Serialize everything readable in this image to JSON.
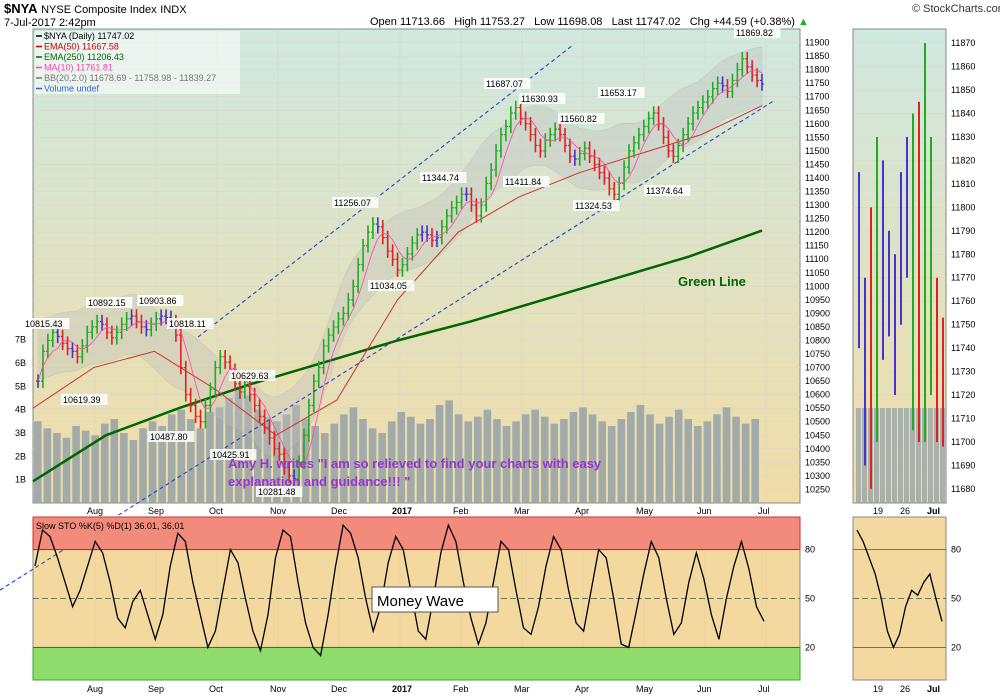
{
  "header": {
    "symbol": "$NYA",
    "name": "NYSE Composite Index",
    "exchange": "INDX",
    "date": "7-Jul-2017 2:42pm",
    "open": "Open 11713.66",
    "high": "High 11753.27",
    "low": "Low 11698.08",
    "last": "Last 11747.02",
    "chg": "Chg +44.59 (+0.38%)",
    "up_icon": "up-triangle-icon",
    "logo": "© StockCharts.com"
  },
  "legend": [
    {
      "text": "$NYA (Daily) 11747.02",
      "color": "#000000"
    },
    {
      "text": "EMA(50) 11667.58",
      "color": "#cc0000"
    },
    {
      "text": "EMA(250) 11206.43",
      "color": "#006600"
    },
    {
      "text": "MA(10) 11761.81",
      "color": "#ff44aa"
    },
    {
      "text": "BB(20,2.0) 11678.69 - 11758.98 - 11839.27",
      "color": "#777777"
    },
    {
      "text": "Volume undef",
      "color": "#3366cc"
    }
  ],
  "annotations": {
    "testimonial_line1": "Amy H. writes \"I am so relieved to find your charts with easy",
    "testimonial_line2": "explanation and guidance!!! \"",
    "green_line": "Green Line",
    "money_wave": "Money Wave"
  },
  "colors": {
    "up_bar": "#22aa22",
    "down_bar": "#dd2222",
    "neutral_bar": "#4433cc",
    "ema250": "#006600",
    "ema50": "#cc3333",
    "ma10": "#ff44aa",
    "bb": "#999999",
    "channel": "#2244cc",
    "volume": "#9aa5a8",
    "overbought": "#f28b7b",
    "oversold": "#8fdc6c",
    "testimonial": "#9933cc"
  },
  "chart_data": [
    {
      "type": "line",
      "title": "$NYA NYSE Composite Index INDX",
      "ylim": [
        10200,
        11950
      ],
      "y_ticks": [
        10250,
        10300,
        10350,
        10400,
        10450,
        10500,
        10550,
        10600,
        10650,
        10700,
        10750,
        10800,
        10850,
        10900,
        10950,
        11000,
        11050,
        11100,
        11150,
        11200,
        11250,
        11300,
        11350,
        11400,
        11450,
        11500,
        11550,
        11600,
        11650,
        11700,
        11750,
        11800,
        11850,
        11900
      ],
      "x_labels": [
        "Aug",
        "Sep",
        "Oct",
        "Nov",
        "Dec",
        "2017",
        "Feb",
        "Mar",
        "Apr",
        "May",
        "Jun",
        "Jul"
      ],
      "volume_ticks": [
        "1B",
        "2B",
        "3B",
        "4B",
        "5B",
        "6B",
        "7B"
      ],
      "price_labels": [
        10815.43,
        10892.15,
        10903.86,
        10818.11,
        10619.39,
        10487.8,
        10629.63,
        10425.91,
        10281.48,
        11256.07,
        11034.05,
        11344.74,
        11687.07,
        11630.93,
        11411.84,
        11560.82,
        11324.53,
        11653.17,
        11374.64,
        11869.82
      ],
      "series": [
        {
          "name": "$NYA (Daily)",
          "values": [
            10650,
            10760,
            10800,
            10830,
            10815,
            10790,
            10770,
            10760,
            10740,
            10780,
            10830,
            10850,
            10870,
            10860,
            10830,
            10810,
            10830,
            10860,
            10880,
            10890,
            10870,
            10850,
            10840,
            10860,
            10880,
            10890,
            10885,
            10870,
            10820,
            10700,
            10600,
            10560,
            10520,
            10500,
            10560,
            10620,
            10700,
            10740,
            10720,
            10690,
            10640,
            10610,
            10630,
            10600,
            10560,
            10520,
            10480,
            10440,
            10400,
            10380,
            10330,
            10300,
            10290,
            10350,
            10450,
            10560,
            10650,
            10700,
            10780,
            10820,
            10850,
            10880,
            10900,
            10950,
            11000,
            11080,
            11150,
            11200,
            11230,
            11220,
            11180,
            11130,
            11100,
            11060,
            11080,
            11120,
            11160,
            11190,
            11200,
            11190,
            11170,
            11180,
            11220,
            11260,
            11290,
            11310,
            11340,
            11340,
            11300,
            11260,
            11300,
            11380,
            11430,
            11500,
            11560,
            11590,
            11640,
            11660,
            11620,
            11600,
            11560,
            11520,
            11500,
            11540,
            11560,
            11580,
            11560,
            11520,
            11480,
            11470,
            11490,
            11510,
            11480,
            11450,
            11420,
            11400,
            11360,
            11340,
            11380,
            11440,
            11500,
            11530,
            11560,
            11590,
            11620,
            11640,
            11600,
            11550,
            11500,
            11480,
            11520,
            11560,
            11600,
            11640,
            11660,
            11680,
            11700,
            11730,
            11750,
            11740,
            11720,
            11760,
            11800,
            11840,
            11810,
            11780,
            11760,
            11747
          ]
        },
        {
          "name": "EMA(250)",
          "values": [
            10280,
            10450,
            10550,
            10640,
            10720,
            10800,
            10870,
            10950,
            11030,
            11110,
            11206
          ]
        },
        {
          "name": "EMA(50)",
          "values": [
            10550,
            10700,
            10760,
            10620,
            10450,
            10580,
            10950,
            11200,
            11330,
            11420,
            11490,
            11560,
            11667
          ]
        },
        {
          "name": "Volume",
          "values": [
            3.5,
            3.2,
            3.0,
            2.8,
            3.3,
            3.1,
            2.9,
            3.4,
            3.6,
            3.0,
            2.7,
            3.2,
            3.5,
            3.3,
            3.8,
            4.0,
            3.6,
            3.2,
            3.9,
            4.1,
            4.5,
            5.0,
            4.6,
            4.0,
            3.7,
            3.5,
            3.8,
            4.2,
            3.6,
            3.3,
            3.0,
            3.4,
            3.8,
            4.1,
            3.6,
            3.2,
            3.0,
            3.5,
            3.9,
            3.7,
            3.4,
            3.6,
            4.2,
            4.4,
            3.8,
            3.5,
            3.7,
            4.0,
            3.6,
            3.3,
            3.5,
            3.8,
            4.0,
            3.7,
            3.4,
            3.6,
            3.9,
            4.1,
            3.8,
            3.5,
            3.3,
            3.6,
            3.9,
            4.2,
            3.8,
            3.4,
            3.7,
            4.0,
            3.6,
            3.3,
            3.5,
            3.8,
            4.1,
            3.7,
            3.4,
            3.6
          ]
        }
      ]
    },
    {
      "type": "line",
      "title": "Slow STO %K(5) %D(1) 36.01, 36.01",
      "ylim": [
        0,
        100
      ],
      "y_ticks": [
        20,
        50,
        80
      ],
      "x_labels": [
        "Aug",
        "Sep",
        "Oct",
        "Nov",
        "Dec",
        "2017",
        "Feb",
        "Mar",
        "Apr",
        "May",
        "Jun",
        "Jul"
      ],
      "series": [
        {
          "name": "Slow STO %K(5)",
          "values": [
            70,
            92,
            88,
            75,
            60,
            45,
            55,
            70,
            85,
            78,
            60,
            38,
            32,
            48,
            55,
            40,
            25,
            40,
            70,
            90,
            85,
            60,
            40,
            20,
            30,
            55,
            80,
            72,
            50,
            30,
            18,
            40,
            75,
            92,
            88,
            60,
            35,
            20,
            15,
            40,
            70,
            95,
            90,
            75,
            50,
            30,
            45,
            72,
            88,
            80,
            55,
            30,
            25,
            50,
            78,
            95,
            85,
            60,
            38,
            22,
            35,
            60,
            85,
            80,
            55,
            32,
            28,
            45,
            70,
            88,
            80,
            55,
            35,
            30,
            55,
            80,
            75,
            50,
            22,
            20,
            42,
            65,
            85,
            75,
            50,
            28,
            35,
            60,
            78,
            62,
            40,
            25,
            50,
            70,
            85,
            68,
            45,
            36
          ]
        }
      ]
    },
    {
      "type": "line",
      "title": "$NYA NYSE Composite Index INDX",
      "ylim": [
        11674,
        11876
      ],
      "y_ticks": [
        11680,
        11690,
        11700,
        11710,
        11720,
        11730,
        11740,
        11750,
        11760,
        11770,
        11780,
        11790,
        11800,
        11810,
        11820,
        11830,
        11840,
        11850,
        11860,
        11870
      ],
      "x_labels": [
        "19",
        "26",
        "Jul"
      ]
    },
    {
      "type": "line",
      "title": "Slow STO %K(5) %D(1) 36.01, 36.01",
      "ylim": [
        0,
        100
      ],
      "y_ticks": [
        20,
        50,
        80
      ],
      "x_labels": [
        "19",
        "26",
        "Jul"
      ],
      "series": [
        {
          "name": "Slow STO %K(5)",
          "values": [
            92,
            85,
            75,
            65,
            50,
            30,
            20,
            28,
            45,
            55,
            52,
            60,
            65,
            50,
            36
          ]
        }
      ]
    }
  ]
}
